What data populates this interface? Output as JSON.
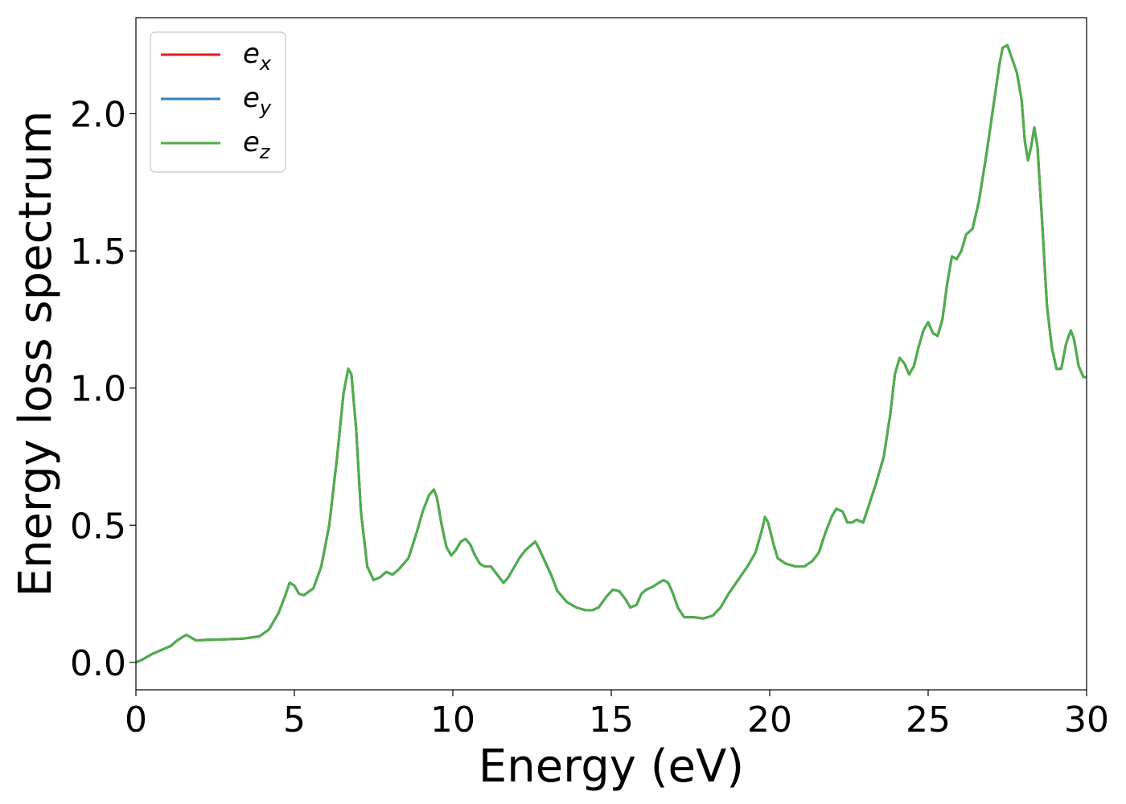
{
  "chart_data": {
    "type": "line",
    "xlabel": "Energy (eV)",
    "ylabel": "Energy loss spectrum",
    "xlim": [
      0,
      30
    ],
    "ylim": [
      -0.1,
      2.35
    ],
    "grid": false,
    "legend_position": "top-left",
    "x_ticks": [
      0,
      5,
      10,
      15,
      20,
      25,
      30
    ],
    "x_tick_labels": [
      "0",
      "5",
      "10",
      "15",
      "20",
      "25",
      "30"
    ],
    "y_ticks": [
      0.0,
      0.5,
      1.0,
      1.5,
      2.0
    ],
    "y_tick_labels": [
      "0.0",
      "0.5",
      "1.0",
      "1.5",
      "2.0"
    ],
    "x": [
      0,
      0.2,
      0.5,
      0.8,
      1.1,
      1.3,
      1.5,
      1.6,
      1.75,
      1.9,
      2.2,
      2.6,
      3.0,
      3.4,
      3.6,
      3.9,
      4.2,
      4.5,
      4.7,
      4.85,
      5.0,
      5.15,
      5.3,
      5.6,
      5.85,
      6.1,
      6.35,
      6.55,
      6.7,
      6.8,
      6.95,
      7.1,
      7.3,
      7.5,
      7.7,
      7.9,
      8.1,
      8.3,
      8.6,
      8.85,
      9.05,
      9.25,
      9.4,
      9.5,
      9.65,
      9.8,
      9.95,
      10.1,
      10.25,
      10.4,
      10.55,
      10.7,
      10.85,
      11.0,
      11.2,
      11.4,
      11.6,
      11.75,
      11.9,
      12.1,
      12.3,
      12.5,
      12.6,
      12.7,
      12.9,
      13.1,
      13.3,
      13.6,
      13.9,
      14.2,
      14.4,
      14.6,
      14.85,
      15.05,
      15.25,
      15.45,
      15.6,
      15.8,
      15.95,
      16.1,
      16.3,
      16.5,
      16.65,
      16.8,
      16.95,
      17.1,
      17.3,
      17.6,
      17.9,
      18.2,
      18.45,
      18.7,
      19.0,
      19.3,
      19.55,
      19.75,
      19.85,
      19.95,
      20.1,
      20.25,
      20.5,
      20.8,
      21.1,
      21.35,
      21.55,
      21.75,
      21.95,
      22.1,
      22.3,
      22.45,
      22.6,
      22.75,
      22.95,
      23.15,
      23.35,
      23.6,
      23.8,
      23.95,
      24.1,
      24.25,
      24.4,
      24.55,
      24.7,
      24.85,
      25.0,
      25.15,
      25.3,
      25.45,
      25.6,
      25.75,
      25.9,
      26.05,
      26.2,
      26.4,
      26.6,
      26.85,
      27.05,
      27.25,
      27.35,
      27.5,
      27.65,
      27.8,
      27.95,
      28.05,
      28.15,
      28.25,
      28.35,
      28.45,
      28.6,
      28.75,
      28.9,
      29.05,
      29.2,
      29.35,
      29.5,
      29.6,
      29.75,
      29.9,
      30.0
    ],
    "series": [
      {
        "name": "e_x",
        "color": "#e41a1c",
        "values": [
          0.0,
          0.01,
          0.03,
          0.045,
          0.06,
          0.08,
          0.095,
          0.1,
          0.09,
          0.08,
          0.082,
          0.083,
          0.085,
          0.087,
          0.09,
          0.095,
          0.12,
          0.18,
          0.24,
          0.29,
          0.28,
          0.25,
          0.245,
          0.27,
          0.35,
          0.5,
          0.75,
          0.98,
          1.07,
          1.05,
          0.85,
          0.55,
          0.35,
          0.3,
          0.31,
          0.33,
          0.32,
          0.34,
          0.38,
          0.47,
          0.55,
          0.61,
          0.63,
          0.6,
          0.5,
          0.42,
          0.39,
          0.41,
          0.44,
          0.45,
          0.43,
          0.39,
          0.36,
          0.35,
          0.35,
          0.32,
          0.29,
          0.31,
          0.34,
          0.38,
          0.41,
          0.43,
          0.44,
          0.42,
          0.37,
          0.32,
          0.26,
          0.22,
          0.2,
          0.19,
          0.19,
          0.2,
          0.24,
          0.265,
          0.26,
          0.23,
          0.2,
          0.21,
          0.25,
          0.265,
          0.275,
          0.29,
          0.3,
          0.29,
          0.25,
          0.2,
          0.165,
          0.165,
          0.16,
          0.17,
          0.2,
          0.25,
          0.3,
          0.35,
          0.4,
          0.48,
          0.53,
          0.51,
          0.44,
          0.38,
          0.36,
          0.35,
          0.35,
          0.37,
          0.4,
          0.47,
          0.53,
          0.56,
          0.55,
          0.51,
          0.51,
          0.52,
          0.51,
          0.58,
          0.65,
          0.75,
          0.9,
          1.05,
          1.11,
          1.09,
          1.05,
          1.08,
          1.15,
          1.21,
          1.24,
          1.2,
          1.19,
          1.25,
          1.38,
          1.48,
          1.47,
          1.5,
          1.56,
          1.58,
          1.68,
          1.86,
          2.02,
          2.18,
          2.24,
          2.25,
          2.2,
          2.15,
          2.05,
          1.9,
          1.83,
          1.88,
          1.95,
          1.88,
          1.6,
          1.3,
          1.15,
          1.07,
          1.07,
          1.16,
          1.21,
          1.18,
          1.08,
          1.04,
          1.04
        ]
      },
      {
        "name": "e_y",
        "color": "#377eb8",
        "values": [
          0.0,
          0.01,
          0.03,
          0.045,
          0.06,
          0.08,
          0.095,
          0.1,
          0.09,
          0.08,
          0.082,
          0.083,
          0.085,
          0.087,
          0.09,
          0.095,
          0.12,
          0.18,
          0.24,
          0.29,
          0.28,
          0.25,
          0.245,
          0.27,
          0.35,
          0.5,
          0.75,
          0.98,
          1.07,
          1.05,
          0.85,
          0.55,
          0.35,
          0.3,
          0.31,
          0.33,
          0.32,
          0.34,
          0.38,
          0.47,
          0.55,
          0.61,
          0.63,
          0.6,
          0.5,
          0.42,
          0.39,
          0.41,
          0.44,
          0.45,
          0.43,
          0.39,
          0.36,
          0.35,
          0.35,
          0.32,
          0.29,
          0.31,
          0.34,
          0.38,
          0.41,
          0.43,
          0.44,
          0.42,
          0.37,
          0.32,
          0.26,
          0.22,
          0.2,
          0.19,
          0.19,
          0.2,
          0.24,
          0.265,
          0.26,
          0.23,
          0.2,
          0.21,
          0.25,
          0.265,
          0.275,
          0.29,
          0.3,
          0.29,
          0.25,
          0.2,
          0.165,
          0.165,
          0.16,
          0.17,
          0.2,
          0.25,
          0.3,
          0.35,
          0.4,
          0.48,
          0.53,
          0.51,
          0.44,
          0.38,
          0.36,
          0.35,
          0.35,
          0.37,
          0.4,
          0.47,
          0.53,
          0.56,
          0.55,
          0.51,
          0.51,
          0.52,
          0.51,
          0.58,
          0.65,
          0.75,
          0.9,
          1.05,
          1.11,
          1.09,
          1.05,
          1.08,
          1.15,
          1.21,
          1.24,
          1.2,
          1.19,
          1.25,
          1.38,
          1.48,
          1.47,
          1.5,
          1.56,
          1.58,
          1.68,
          1.86,
          2.02,
          2.18,
          2.24,
          2.25,
          2.2,
          2.15,
          2.05,
          1.9,
          1.83,
          1.88,
          1.95,
          1.88,
          1.6,
          1.3,
          1.15,
          1.07,
          1.07,
          1.16,
          1.21,
          1.18,
          1.08,
          1.04,
          1.04
        ]
      },
      {
        "name": "e_z",
        "color": "#4daf4a",
        "values": [
          0.0,
          0.01,
          0.03,
          0.045,
          0.06,
          0.08,
          0.095,
          0.1,
          0.09,
          0.08,
          0.082,
          0.083,
          0.085,
          0.087,
          0.09,
          0.095,
          0.12,
          0.18,
          0.24,
          0.29,
          0.28,
          0.25,
          0.245,
          0.27,
          0.35,
          0.5,
          0.75,
          0.98,
          1.07,
          1.05,
          0.85,
          0.55,
          0.35,
          0.3,
          0.31,
          0.33,
          0.32,
          0.34,
          0.38,
          0.47,
          0.55,
          0.61,
          0.63,
          0.6,
          0.5,
          0.42,
          0.39,
          0.41,
          0.44,
          0.45,
          0.43,
          0.39,
          0.36,
          0.35,
          0.35,
          0.32,
          0.29,
          0.31,
          0.34,
          0.38,
          0.41,
          0.43,
          0.44,
          0.42,
          0.37,
          0.32,
          0.26,
          0.22,
          0.2,
          0.19,
          0.19,
          0.2,
          0.24,
          0.265,
          0.26,
          0.23,
          0.2,
          0.21,
          0.25,
          0.265,
          0.275,
          0.29,
          0.3,
          0.29,
          0.25,
          0.2,
          0.165,
          0.165,
          0.16,
          0.17,
          0.2,
          0.25,
          0.3,
          0.35,
          0.4,
          0.48,
          0.53,
          0.51,
          0.44,
          0.38,
          0.36,
          0.35,
          0.35,
          0.37,
          0.4,
          0.47,
          0.53,
          0.56,
          0.55,
          0.51,
          0.51,
          0.52,
          0.51,
          0.58,
          0.65,
          0.75,
          0.9,
          1.05,
          1.11,
          1.09,
          1.05,
          1.08,
          1.15,
          1.21,
          1.24,
          1.2,
          1.19,
          1.25,
          1.38,
          1.48,
          1.47,
          1.5,
          1.56,
          1.58,
          1.68,
          1.86,
          2.02,
          2.18,
          2.24,
          2.25,
          2.2,
          2.15,
          2.05,
          1.9,
          1.83,
          1.88,
          1.95,
          1.88,
          1.6,
          1.3,
          1.15,
          1.07,
          1.07,
          1.16,
          1.21,
          1.18,
          1.08,
          1.04,
          1.04
        ]
      }
    ],
    "legend": {
      "entries": [
        {
          "base": "e",
          "sub": "x",
          "color": "#e41a1c"
        },
        {
          "base": "e",
          "sub": "y",
          "color": "#377eb8"
        },
        {
          "base": "e",
          "sub": "z",
          "color": "#4daf4a"
        }
      ]
    }
  }
}
